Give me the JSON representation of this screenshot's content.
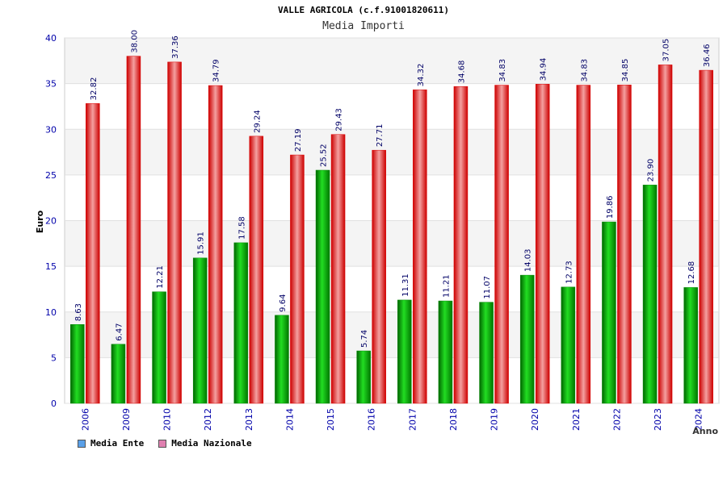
{
  "chart_data": {
    "type": "bar",
    "title": "VALLE AGRICOLA (c.f.91001820611)",
    "subtitle": "Media Importi",
    "xlabel": "Anno",
    "ylabel": "Euro",
    "ylim": [
      0,
      40
    ],
    "yticks": [
      "0",
      "5",
      "10",
      "15",
      "20",
      "25",
      "30",
      "35",
      "40"
    ],
    "categories": [
      "2006",
      "2009",
      "2010",
      "2012",
      "2013",
      "2014",
      "2015",
      "2016",
      "2017",
      "2018",
      "2019",
      "2020",
      "2021",
      "2022",
      "2023",
      "2024"
    ],
    "series": [
      {
        "name": "Media Ente",
        "color": "#00aa00",
        "legend_color": "#5aa0e8",
        "values": [
          8.63,
          6.47,
          12.21,
          15.91,
          17.58,
          9.64,
          25.52,
          5.74,
          11.31,
          11.21,
          11.07,
          14.03,
          12.73,
          19.86,
          23.9,
          12.68
        ],
        "labels": [
          "8.63",
          "6.47",
          "12.21",
          "15.91",
          "17.58",
          "9.64",
          "25.52",
          "5.74",
          "11.31",
          "11.21",
          "11.07",
          "14.03",
          "12.73",
          "19.86",
          "23.90",
          "12.68"
        ]
      },
      {
        "name": "Media Nazionale",
        "color": "#ee1111",
        "legend_color": "#e080b0",
        "values": [
          32.82,
          38.0,
          37.36,
          34.79,
          29.24,
          27.19,
          29.43,
          27.71,
          34.32,
          34.68,
          34.83,
          34.94,
          34.83,
          34.85,
          37.05,
          36.46
        ],
        "labels": [
          "32.82",
          "38.00",
          "37.36",
          "34.79",
          "29.24",
          "27.19",
          "29.43",
          "27.71",
          "34.32",
          "34.68",
          "34.83",
          "34.94",
          "34.83",
          "34.85",
          "37.05",
          "36.46"
        ]
      }
    ],
    "grid": true,
    "legend": "bottom-left"
  }
}
